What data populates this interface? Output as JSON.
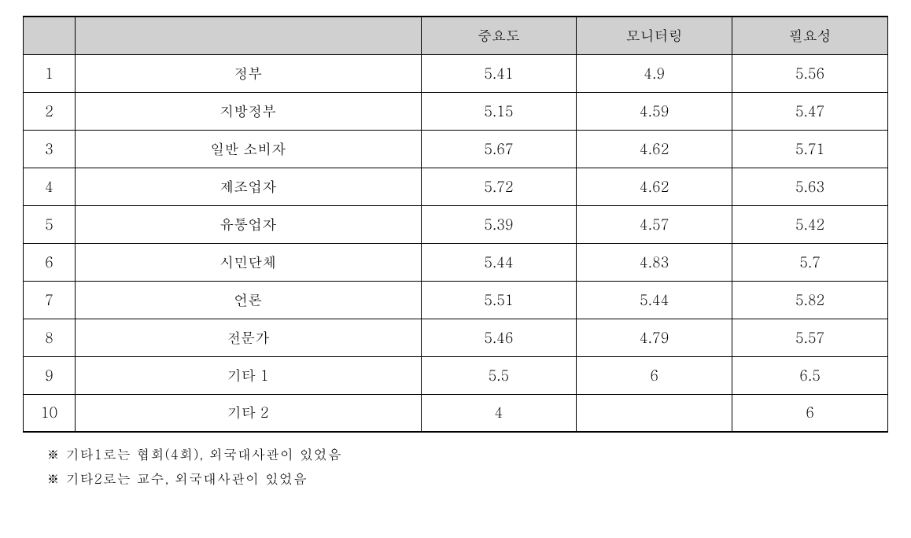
{
  "table": {
    "headers": {
      "col1": "",
      "col2": "",
      "col3": "중요도",
      "col4": "모니터링",
      "col5": "필요성"
    },
    "rows": [
      {
        "index": "1",
        "category": "정부",
        "importance": "5.41",
        "monitoring": "4.9",
        "necessity": "5.56"
      },
      {
        "index": "2",
        "category": "지방정부",
        "importance": "5.15",
        "monitoring": "4.59",
        "necessity": "5.47"
      },
      {
        "index": "3",
        "category": "일반 소비자",
        "importance": "5.67",
        "monitoring": "4.62",
        "necessity": "5.71"
      },
      {
        "index": "4",
        "category": "제조업자",
        "importance": "5.72",
        "monitoring": "4.62",
        "necessity": "5.63"
      },
      {
        "index": "5",
        "category": "유통업자",
        "importance": "5.39",
        "monitoring": "4.57",
        "necessity": "5.42"
      },
      {
        "index": "6",
        "category": "시민단체",
        "importance": "5.44",
        "monitoring": "4.83",
        "necessity": "5.7"
      },
      {
        "index": "7",
        "category": "언론",
        "importance": "5.51",
        "monitoring": "5.44",
        "necessity": "5.82"
      },
      {
        "index": "8",
        "category": "전문가",
        "importance": "5.46",
        "monitoring": "4.79",
        "necessity": "5.57"
      },
      {
        "index": "9",
        "category": "기타 1",
        "importance": "5.5",
        "monitoring": "6",
        "necessity": "6.5"
      },
      {
        "index": "10",
        "category": "기타 2",
        "importance": "4",
        "monitoring": "",
        "necessity": "6"
      }
    ]
  },
  "footnotes": {
    "note1": "※  기타1로는  협회(4회),  외국대사관이  있었음",
    "note2": "※  기타2로는  교수,  외국대사관이  있었음"
  },
  "styling": {
    "header_bg": "#d0d0d0",
    "border_color": "#000000",
    "text_color": "#000000",
    "font_family": "Batang",
    "cell_fontsize": 18,
    "footnote_fontsize": 17
  }
}
